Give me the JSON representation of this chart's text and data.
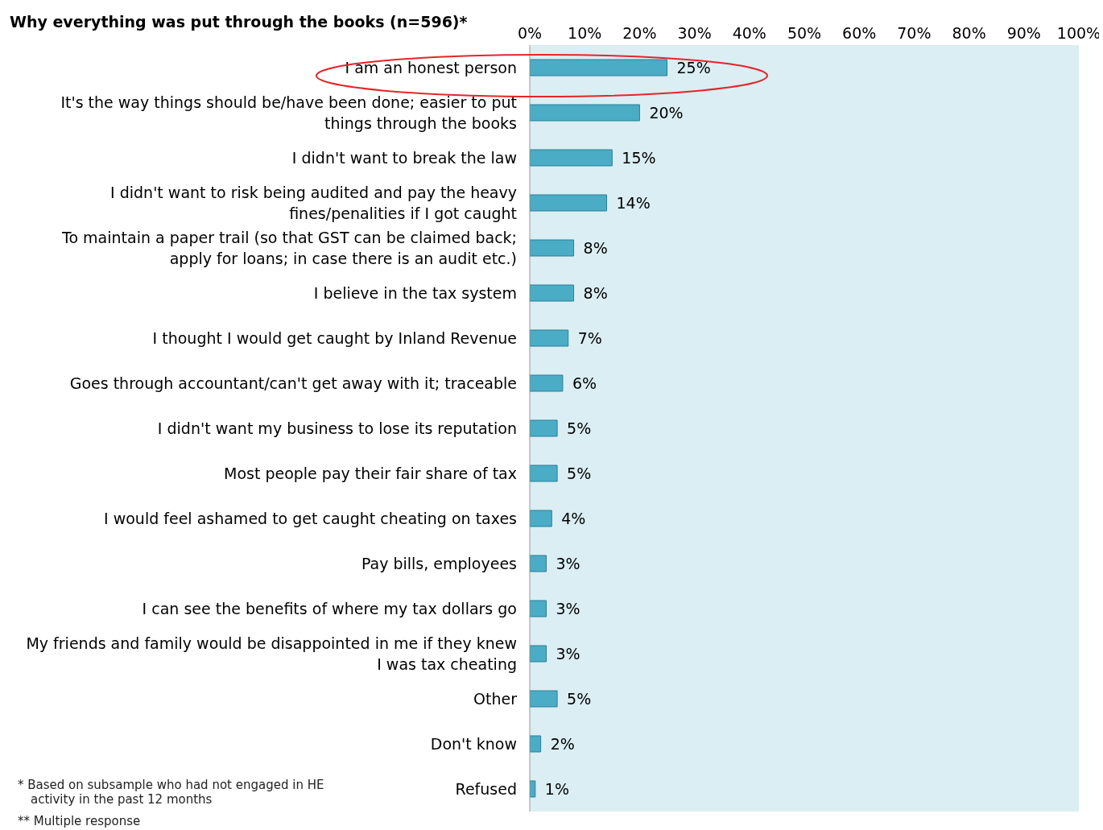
{
  "chart_data": {
    "type": "bar",
    "orientation": "horizontal",
    "title": "Why everything was put through the books (n=596)*",
    "categories": [
      "I am an honest person",
      "It's the way things should be/have been done; easier to put things through the books",
      "I didn't want to break the law",
      "I didn't want to risk being audited and pay the heavy fines/penalities if I got caught",
      "To maintain a paper trail (so that GST can be claimed back; apply for loans; in case there is an audit etc.)",
      "I  believe in the tax system",
      "I thought I would get caught by Inland Revenue",
      "Goes through accountant/can't get away with it; traceable",
      "I didn't want my business to lose its reputation",
      "Most people pay their fair share of tax",
      "I would feel ashamed to get caught cheating on taxes",
      "Pay bills, employees",
      "I can see the benefits of where my tax dollars go",
      "My friends and family would be disappointed in me if they knew I was tax cheating",
      "Other",
      "Don't know",
      "Refused"
    ],
    "values": [
      25,
      20,
      15,
      14,
      8,
      8,
      7,
      6,
      5,
      5,
      4,
      3,
      3,
      3,
      5,
      2,
      1
    ],
    "value_labels": [
      "25%",
      "20%",
      "15%",
      "14%",
      "8%",
      "8%",
      "7%",
      "6%",
      "5%",
      "5%",
      "4%",
      "3%",
      "3%",
      "3%",
      "5%",
      "2%",
      "1%"
    ],
    "color": "#4bacc6",
    "xlim": [
      0,
      100
    ],
    "xticks": [
      {
        "value": 0,
        "label": "0%"
      },
      {
        "value": 10,
        "label": "10%"
      },
      {
        "value": 20,
        "label": "20%"
      },
      {
        "value": 30,
        "label": "30%"
      },
      {
        "value": 40,
        "label": "40%"
      },
      {
        "value": 50,
        "label": "50%"
      },
      {
        "value": 60,
        "label": "60%"
      },
      {
        "value": 70,
        "label": "70%"
      },
      {
        "value": 80,
        "label": "80%"
      },
      {
        "value": 90,
        "label": "90%"
      },
      {
        "value": 100,
        "label": "100%"
      }
    ],
    "grid": false,
    "legend": false,
    "annotations": [
      "* Based on subsample who had not engaged in HE activity in the past 12 months",
      "** Multiple response"
    ]
  }
}
